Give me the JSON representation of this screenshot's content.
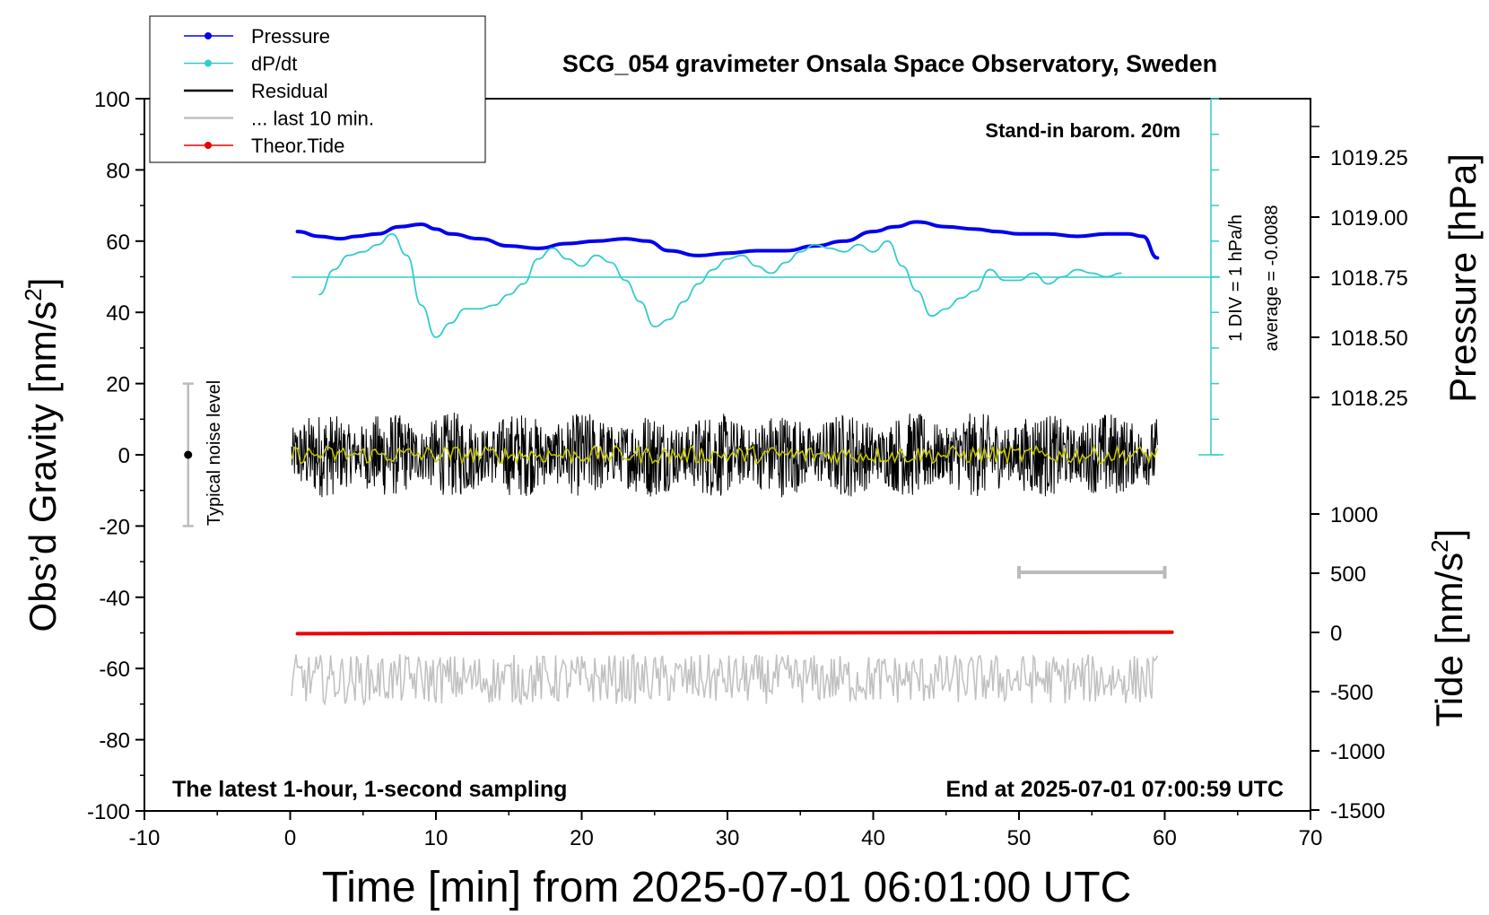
{
  "chart_data": {
    "type": "line",
    "title": "SCG_054 gravimeter Onsala Space Observatory, Sweden",
    "xlabel": "Time [min] from 2025-07-01 06:01:00 UTC",
    "ylabel_main": "Obs’d Gravity [nm/s",
    "ylabel_pressure": "Pressure [hPa]",
    "ylabel_tide": "Tide [nm/s",
    "unit_exponent": "2",
    "xlim": [
      -10,
      70
    ],
    "ylim": [
      -100,
      100
    ],
    "x_ticks": [
      "-10",
      "0",
      "10",
      "20",
      "30",
      "40",
      "50",
      "60",
      "70"
    ],
    "y_ticks": [
      "100",
      "80",
      "60",
      "40",
      "20",
      "0",
      "-20",
      "-40",
      "-60",
      "-80",
      "-100"
    ],
    "pressure_ticks": [
      "1019.25",
      "1019.00",
      "1018.75",
      "1018.50",
      "1018.25"
    ],
    "tide_ticks": [
      "1000",
      "500",
      "0",
      "-500",
      "-1000",
      "-1500"
    ],
    "legend": {
      "position": "top-left",
      "items": [
        {
          "label": "Pressure",
          "color": "#0000ee",
          "marker": true
        },
        {
          "label": "dP/dt",
          "color": "#33cccc",
          "marker": true
        },
        {
          "label": "Residual",
          "color": "#000000",
          "marker": false
        },
        {
          "label": "... last 10 min.",
          "color": "#c0c0c0",
          "marker": false
        },
        {
          "label": "Theor.Tide",
          "color": "#ee0000",
          "marker": true
        }
      ]
    },
    "annotations": {
      "barometer": "Stand-in barom. 20m",
      "div_label": "1 DIV = 1 hPa/h",
      "average_label": "average = -0.0088",
      "noise_label": "Typical noise level",
      "bottom_left": "The latest 1-hour, 1-second sampling",
      "bottom_right": "End at 2025-07-01 07:00:59 UTC"
    },
    "noise_bar": {
      "x": -7,
      "y": [
        -20,
        20
      ]
    },
    "last10_bar": {
      "x": [
        50,
        60
      ]
    },
    "series": [
      {
        "name": "Pressure",
        "axis": "pressure",
        "color": "#0000ee",
        "x": [
          0.5,
          2,
          3.5,
          4.5,
          6,
          7.5,
          9,
          10,
          11,
          13,
          15,
          17,
          19,
          21,
          23,
          24.5,
          26,
          28,
          30,
          32,
          34,
          36,
          38,
          40,
          41.5,
          43,
          45,
          47,
          48.5,
          50,
          52,
          54,
          56,
          57.5,
          58.5,
          59.5
        ],
        "values": [
          1018.94,
          1018.92,
          1018.91,
          1018.92,
          1018.93,
          1018.96,
          1018.97,
          1018.95,
          1018.93,
          1018.91,
          1018.88,
          1018.87,
          1018.89,
          1018.9,
          1018.91,
          1018.9,
          1018.86,
          1018.84,
          1018.85,
          1018.86,
          1018.86,
          1018.88,
          1018.9,
          1018.94,
          1018.96,
          1018.98,
          1018.96,
          1018.95,
          1018.94,
          1018.93,
          1018.93,
          1018.92,
          1018.93,
          1018.93,
          1018.92,
          1018.83
        ]
      },
      {
        "name": "dP/dt",
        "axis": "gravity",
        "color": "#33cccc",
        "x": [
          2,
          3,
          4,
          5,
          6,
          7,
          8,
          9,
          10,
          11,
          12,
          13,
          14,
          15,
          16,
          17,
          18,
          19,
          20,
          21,
          22,
          23,
          24,
          25,
          26,
          27,
          28,
          29,
          30,
          31,
          32,
          33,
          34,
          35,
          36,
          37,
          38,
          39,
          40,
          41,
          42,
          43,
          44,
          45,
          46,
          47,
          48,
          49,
          50,
          51,
          52,
          53,
          54,
          55,
          56,
          57
        ],
        "values": [
          45,
          52,
          56,
          57,
          59,
          62,
          56,
          42,
          33,
          37,
          41,
          41,
          42,
          45,
          48,
          55,
          58,
          55,
          53,
          56,
          54,
          49,
          43,
          36,
          38,
          43,
          48,
          52,
          55,
          56,
          53,
          51,
          54,
          57,
          59,
          58,
          57,
          59,
          57,
          60,
          53,
          46,
          39,
          41,
          44,
          46,
          52,
          49,
          49,
          51,
          48,
          50,
          52,
          51,
          50,
          51
        ]
      },
      {
        "name": "Theor.Tide",
        "axis": "tide",
        "color": "#ee0000",
        "x": [
          0.5,
          60.5
        ],
        "values": [
          -10,
          2
        ]
      }
    ]
  }
}
